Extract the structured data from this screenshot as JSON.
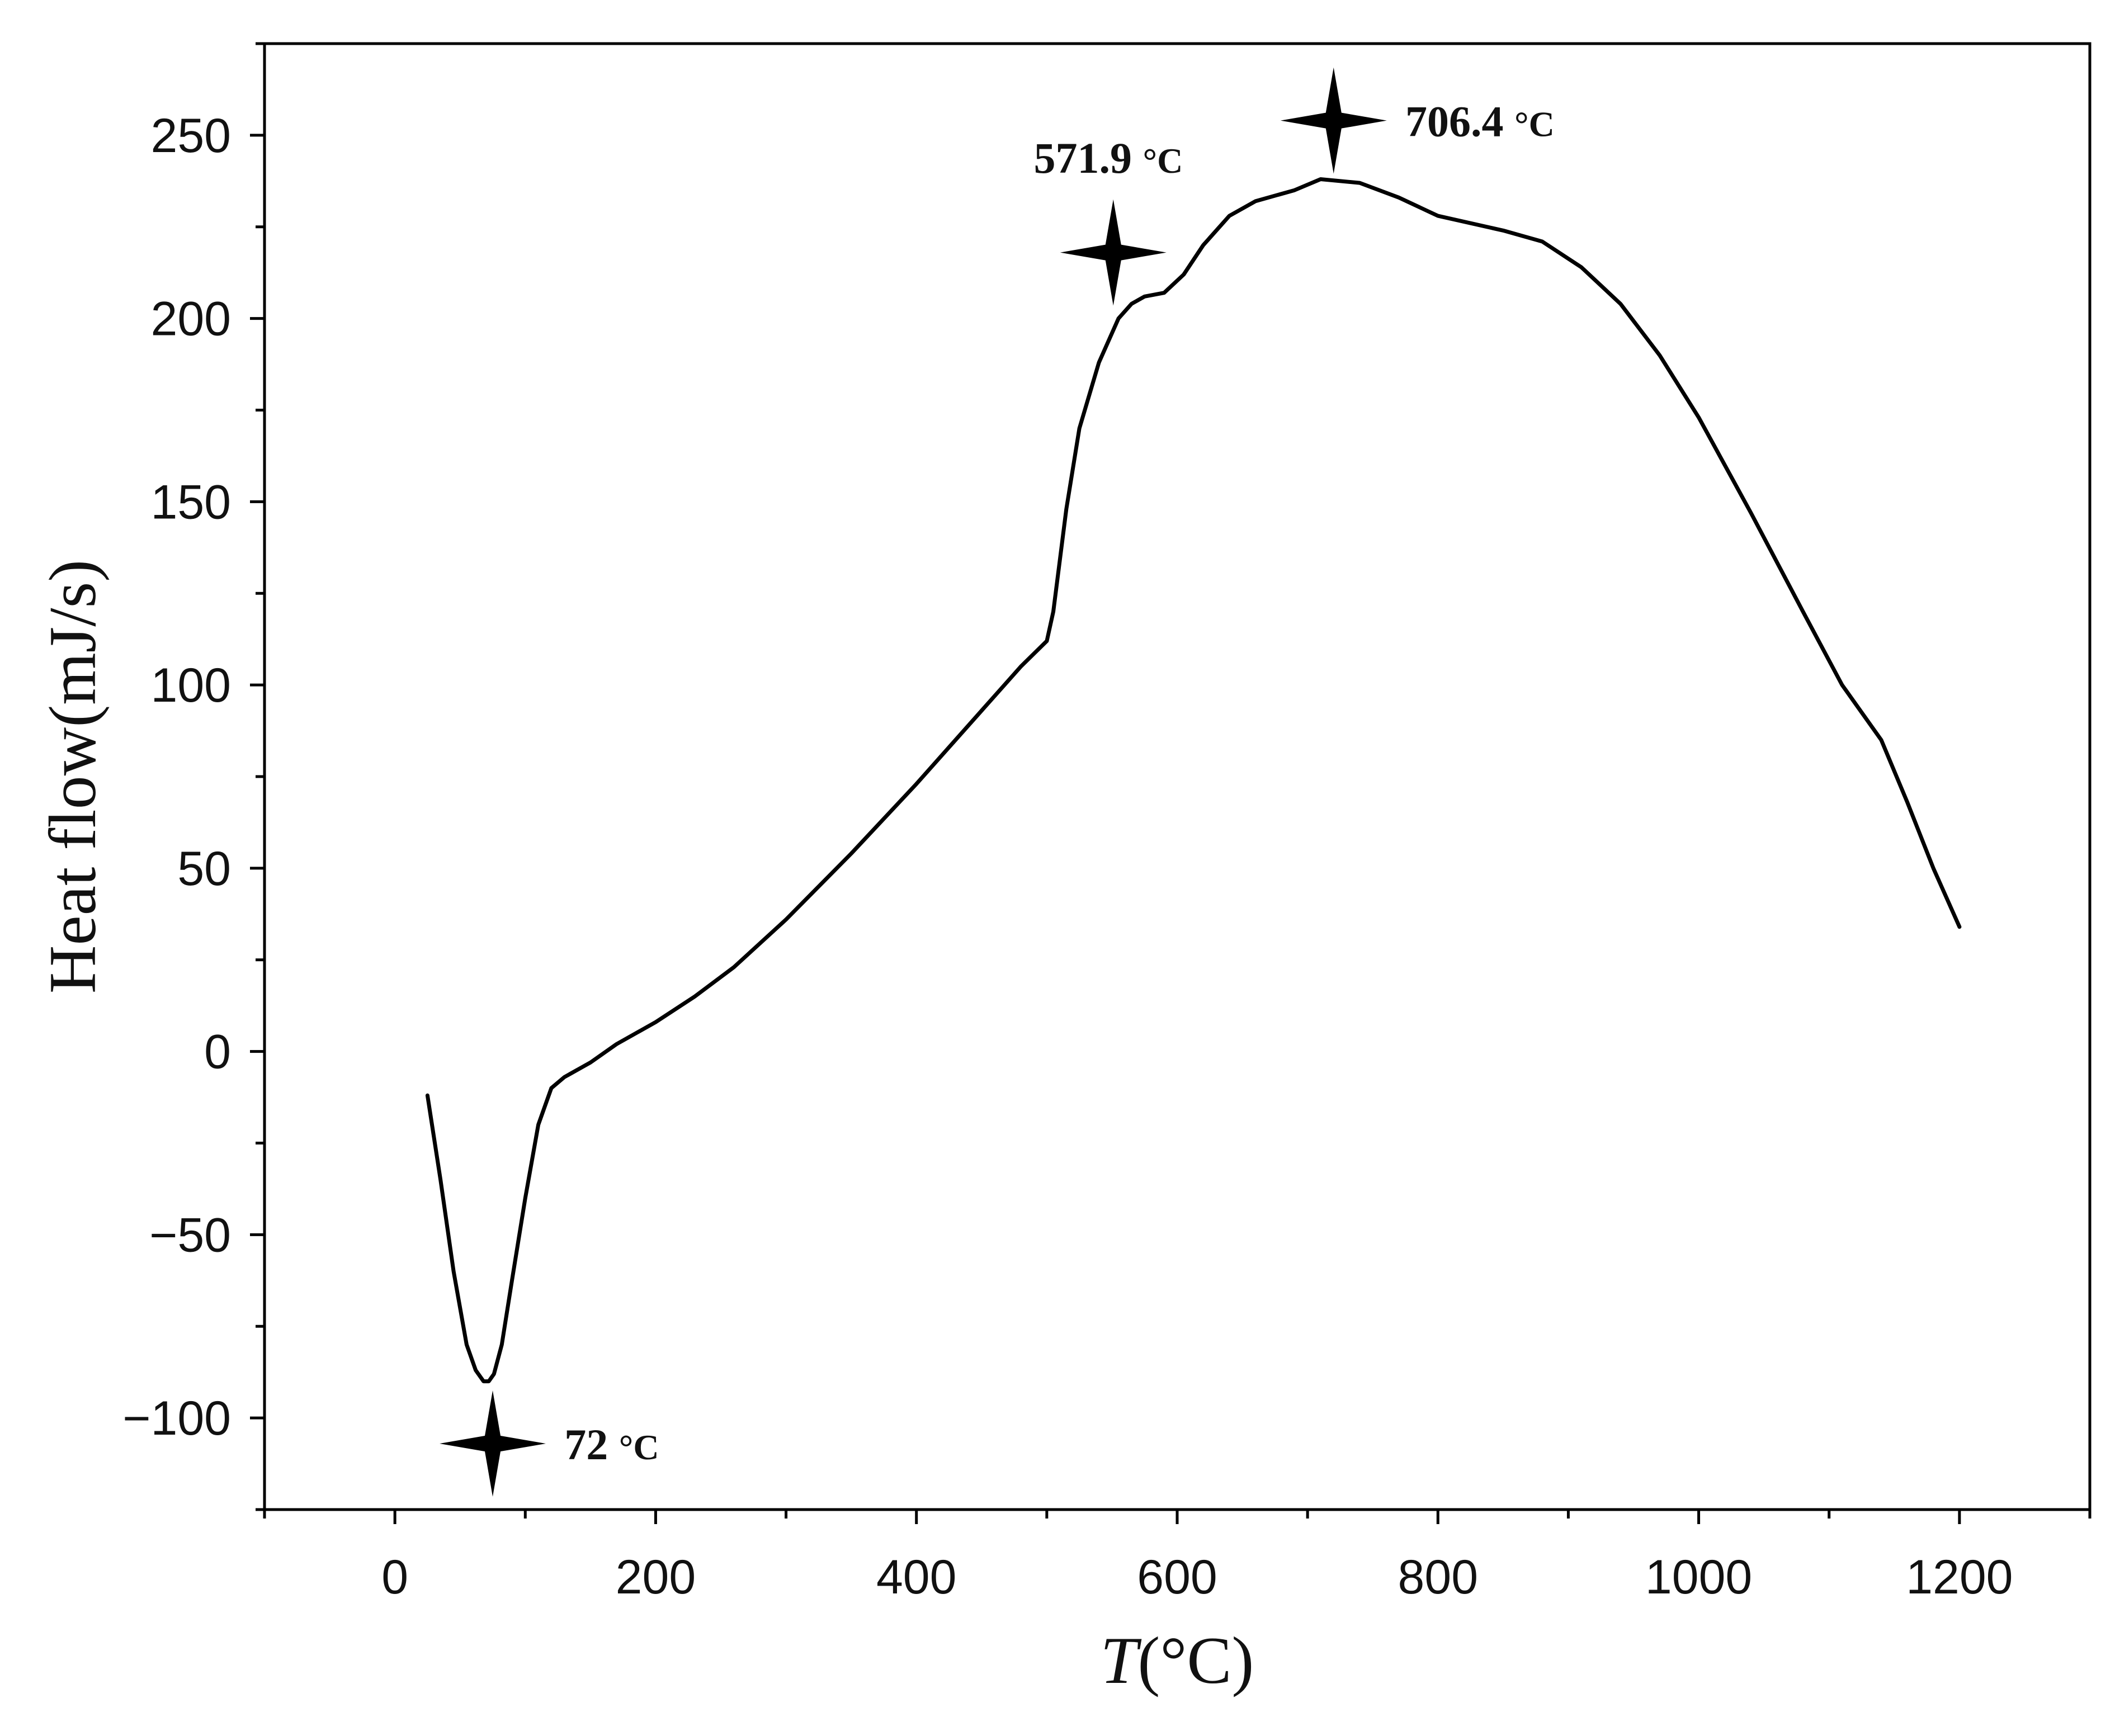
{
  "chart_data": {
    "type": "line",
    "title": "",
    "xlabel_italic": "T",
    "xlabel_rest": "(°C)",
    "ylabel": "Heat flow(mJ/s)",
    "xlim": [
      -100,
      1300
    ],
    "ylim": [
      -125,
      275
    ],
    "x_ticks": [
      0,
      200,
      400,
      600,
      800,
      1000,
      1200
    ],
    "x_tick_labels": [
      "0",
      "200",
      "400",
      "600",
      "800",
      "1000",
      "1200"
    ],
    "y_ticks": [
      -100,
      -50,
      0,
      50,
      100,
      150,
      200,
      250
    ],
    "y_tick_labels": [
      "−100",
      "−50",
      "0",
      "50",
      "100",
      "150",
      "200",
      "250"
    ],
    "grid": false,
    "series": [
      {
        "name": "Heat flow",
        "color": "#000000",
        "x": [
          25,
          35,
          45,
          55,
          62,
          68,
          72,
          76,
          82,
          90,
          100,
          110,
          120,
          130,
          150,
          170,
          200,
          230,
          260,
          300,
          350,
          400,
          450,
          480,
          500,
          505,
          515,
          525,
          540,
          555,
          565,
          575,
          590,
          605,
          620,
          640,
          660,
          690,
          710,
          740,
          770,
          800,
          850,
          880,
          910,
          940,
          970,
          1000,
          1040,
          1080,
          1110,
          1140,
          1160,
          1180,
          1200
        ],
        "y": [
          -12,
          -35,
          -60,
          -80,
          -87,
          -90,
          -90,
          -88,
          -80,
          -62,
          -40,
          -20,
          -10,
          -7,
          -3,
          2,
          8,
          15,
          23,
          36,
          54,
          73,
          93,
          105,
          112,
          120,
          148,
          170,
          188,
          200,
          204,
          206,
          207,
          212,
          220,
          228,
          232,
          235,
          238,
          237,
          233,
          228,
          224,
          221,
          214,
          204,
          190,
          173,
          147,
          120,
          100,
          85,
          68,
          50,
          34
        ]
      }
    ],
    "annotations": [
      {
        "label": "72",
        "unit": "°C",
        "marker_x": 75,
        "marker_y": -107,
        "text_x": 130,
        "text_y": -107
      },
      {
        "label": "571.9",
        "unit": "°C",
        "marker_x": 551,
        "marker_y": 218,
        "text_x": 490,
        "text_y": 244
      },
      {
        "label": "706.4",
        "unit": "°C",
        "marker_x": 720,
        "marker_y": 254,
        "text_x": 775,
        "text_y": 254
      }
    ]
  }
}
